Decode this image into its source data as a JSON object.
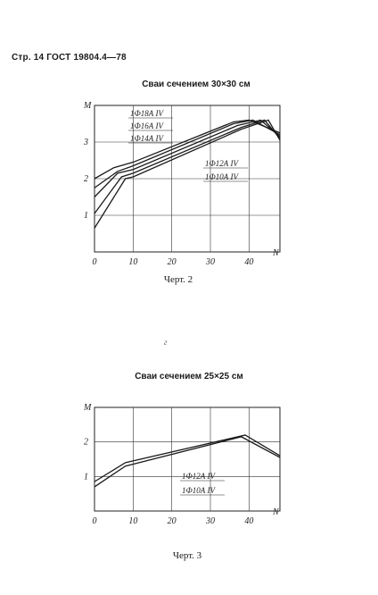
{
  "page": {
    "header": "Стр. 14 ГОСТ 19804.4—78",
    "stray_mark": "г"
  },
  "chart_data": [
    {
      "type": "line",
      "title": "Сваи сечением 30×30 см",
      "caption": "Черт. 2",
      "xlabel": "N",
      "ylabel": "M",
      "xlim": [
        0,
        48
      ],
      "ylim": [
        0,
        4
      ],
      "x_ticks": [
        "0",
        "10",
        "20",
        "30",
        "40"
      ],
      "y_ticks": [
        "1",
        "2",
        "3"
      ],
      "grid": true,
      "series": [
        {
          "name": "1Ф18А IV",
          "x": [
            0,
            5,
            10,
            36,
            40,
            48
          ],
          "y": [
            2.0,
            2.3,
            2.45,
            3.55,
            3.6,
            3.25
          ]
        },
        {
          "name": "1Ф16А IV",
          "x": [
            0,
            6,
            10,
            36,
            41,
            48
          ],
          "y": [
            1.75,
            2.2,
            2.35,
            3.5,
            3.6,
            3.2
          ]
        },
        {
          "name": "1Ф14А IV",
          "x": [
            0,
            6,
            10,
            37,
            43,
            48
          ],
          "y": [
            1.5,
            2.15,
            2.25,
            3.45,
            3.6,
            3.15
          ]
        },
        {
          "name": "1Ф12А IV",
          "x": [
            0,
            7,
            10,
            38,
            44,
            48
          ],
          "y": [
            1.05,
            2.05,
            2.15,
            3.4,
            3.6,
            3.1
          ]
        },
        {
          "name": "1Ф10А IV",
          "x": [
            0,
            8,
            10,
            38,
            45,
            48
          ],
          "y": [
            0.65,
            2.0,
            2.05,
            3.35,
            3.6,
            3.05
          ]
        }
      ],
      "annotations": [
        "1Ф18А IV",
        "1Ф16А IV",
        "1Ф14А IV",
        "1Ф12А IV",
        "1Ф10А IV"
      ]
    },
    {
      "type": "line",
      "title": "Сваи сечением 25×25 см",
      "caption": "Черт. 3",
      "xlabel": "N",
      "ylabel": "M",
      "xlim": [
        0,
        48
      ],
      "ylim": [
        0,
        3
      ],
      "x_ticks": [
        "0",
        "10",
        "20",
        "30",
        "40"
      ],
      "y_ticks": [
        "1",
        "2"
      ],
      "grid": true,
      "series": [
        {
          "name": "1Ф12А IV",
          "x": [
            0,
            8,
            39,
            48
          ],
          "y": [
            0.85,
            1.4,
            2.2,
            1.6
          ]
        },
        {
          "name": "1Ф10А IV",
          "x": [
            0,
            8,
            38,
            48
          ],
          "y": [
            0.7,
            1.3,
            2.15,
            1.55
          ]
        }
      ],
      "annotations": [
        "1Ф12А IV",
        "1Ф10А IV"
      ]
    }
  ]
}
